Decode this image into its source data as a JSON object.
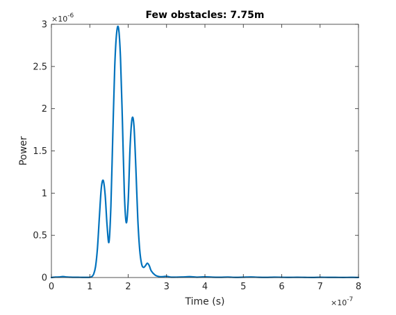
{
  "chart_data": {
    "type": "line",
    "title": "Few obstacles: 7.75m",
    "xlabel": "Time (s)",
    "ylabel": "Power",
    "xlim": [
      0,
      8e-07
    ],
    "ylim": [
      0,
      3e-06
    ],
    "x_ticks": [
      0,
      1e-07,
      2e-07,
      3e-07,
      4e-07,
      5e-07,
      6e-07,
      7e-07,
      8e-07
    ],
    "x_tick_labels": [
      "0",
      "1",
      "2",
      "3",
      "4",
      "5",
      "6",
      "7",
      "8"
    ],
    "y_ticks": [
      0,
      5e-07,
      1e-06,
      1.5e-06,
      2e-06,
      2.5e-06,
      3e-06
    ],
    "y_tick_labels": [
      "0",
      "0.5",
      "1",
      "1.5",
      "2",
      "2.5",
      "3"
    ],
    "x_exponent": "×10",
    "x_exponent_power": "-7",
    "y_exponent": "×10",
    "y_exponent_power": "-6",
    "grid": false,
    "box": true,
    "line_color": "#0072BD",
    "series": [
      {
        "x": [
          0,
          1e-08,
          2e-08,
          3e-08,
          4e-08,
          5e-08,
          6e-08,
          7e-08,
          8e-08,
          9e-08,
          1e-07,
          1.05e-07,
          1.1e-07,
          1.15e-07,
          1.2e-07,
          1.25e-07,
          1.3e-07,
          1.35e-07,
          1.4e-07,
          1.45e-07,
          1.5e-07,
          1.55e-07,
          1.6e-07,
          1.65e-07,
          1.7e-07,
          1.75e-07,
          1.8e-07,
          1.85e-07,
          1.9e-07,
          1.95e-07,
          2e-07,
          2.05e-07,
          2.1e-07,
          2.15e-07,
          2.2e-07,
          2.25e-07,
          2.3e-07,
          2.35e-07,
          2.4e-07,
          2.45e-07,
          2.5e-07,
          2.55e-07,
          2.6e-07,
          2.7e-07,
          2.8e-07,
          2.9e-07,
          3e-07,
          3.1e-07,
          3.2e-07,
          3.4e-07,
          3.6e-07,
          3.8e-07,
          4e-07,
          4.2e-07,
          4.4e-07,
          4.6e-07,
          4.8e-07,
          5e-07,
          5.2e-07,
          5.4e-07,
          5.6e-07,
          5.8e-07,
          6e-07,
          6.2e-07,
          6.4e-07,
          6.6e-07,
          6.8e-07,
          7e-07,
          7.2e-07,
          7.4e-07,
          7.6e-07,
          7.8e-07,
          8e-07
        ],
        "y": [
          0,
          5e-09,
          6e-09,
          1.2e-08,
          6e-09,
          4e-09,
          3e-09,
          3e-09,
          2e-09,
          2e-09,
          3e-09,
          1e-08,
          4e-08,
          1.3e-07,
          3.5e-07,
          7.2e-07,
          1.06e-06,
          1.15e-06,
          9.8e-07,
          6.2e-07,
          4.2e-07,
          8.5e-07,
          1.7e-06,
          2.5e-06,
          2.9e-06,
          2.95e-06,
          2.6e-06,
          1.85e-06,
          1e-06,
          6.5e-07,
          9e-07,
          1.55e-06,
          1.88e-06,
          1.8e-06,
          1.3e-06,
          7e-07,
          3.3e-07,
          1.6e-07,
          1.2e-07,
          1.4e-07,
          1.7e-07,
          1.4e-07,
          8e-08,
          3e-08,
          1.2e-08,
          1e-08,
          1.5e-08,
          5e-09,
          4e-09,
          6e-09,
          1e-08,
          4e-09,
          8e-09,
          4e-09,
          3e-09,
          5e-09,
          2e-09,
          4e-09,
          6e-09,
          3e-09,
          2e-09,
          4e-09,
          3e-09,
          2e-09,
          3e-09,
          2e-09,
          1e-09,
          3e-09,
          2e-09,
          2e-09,
          1e-09,
          2e-09,
          1e-09
        ]
      }
    ]
  }
}
